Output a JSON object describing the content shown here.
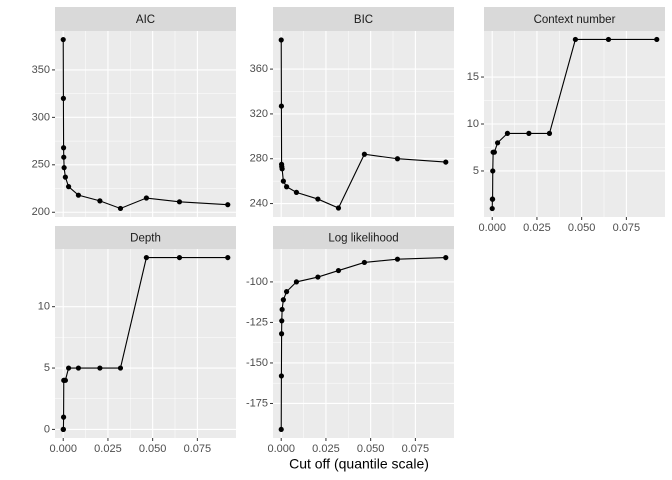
{
  "chart_data": [
    {
      "type": "line",
      "title": "AIC",
      "x": [
        0,
        0.0001,
        0.0002,
        0.0003,
        0.0005,
        0.0012,
        0.003,
        0.0085,
        0.0205,
        0.032,
        0.0465,
        0.065,
        0.092
      ],
      "values": [
        382,
        320,
        268,
        258,
        247,
        237,
        227,
        218,
        212,
        204,
        215,
        211,
        208
      ],
      "xlim": [
        -0.0046,
        0.0966
      ],
      "xticks": [
        {
          "value": 0,
          "label": "0.000"
        },
        0.025,
        {
          "value": 0.05,
          "label": "0.050"
        },
        0.075
      ],
      "ylim": [
        195,
        391
      ],
      "yticks": [
        200,
        250,
        300,
        350
      ],
      "color": "#000000",
      "grid": true
    },
    {
      "type": "line",
      "title": "BIC",
      "x": [
        0,
        0.0001,
        0.0002,
        0.0003,
        0.0005,
        0.0012,
        0.003,
        0.0085,
        0.0205,
        0.032,
        0.0465,
        0.065,
        0.092
      ],
      "values": [
        386,
        327,
        275,
        273,
        271,
        260,
        255,
        250,
        244,
        236,
        284,
        280,
        277
      ],
      "xlim": [
        -0.0046,
        0.0966
      ],
      "xticks": [
        {
          "value": 0,
          "label": "0.000"
        },
        0.025,
        {
          "value": 0.05,
          "label": "0.050"
        },
        0.075
      ],
      "ylim": [
        228,
        394
      ],
      "yticks": [
        240,
        280,
        320,
        360
      ],
      "color": "#000000",
      "grid": true
    },
    {
      "type": "line",
      "title": "Context number",
      "x": [
        0,
        0.0001,
        0.0002,
        0.0003,
        0.0005,
        0.0012,
        0.003,
        0.0085,
        0.0205,
        0.032,
        0.0465,
        0.065,
        0.092
      ],
      "values": [
        1,
        2,
        2,
        5,
        7,
        7,
        8,
        9,
        9,
        9,
        19,
        19,
        19
      ],
      "xlim": [
        -0.0046,
        0.0966
      ],
      "xticks": [
        {
          "value": 0,
          "label": "0.000"
        },
        0.025,
        {
          "value": 0.05,
          "label": "0.050"
        },
        0.075
      ],
      "ylim": [
        0.1,
        19.9
      ],
      "yticks": [
        5,
        10,
        15
      ],
      "color": "#000000",
      "grid": true
    },
    {
      "type": "line",
      "title": "Depth",
      "x": [
        0,
        0.0001,
        0.0002,
        0.0003,
        0.0005,
        0.0012,
        0.003,
        0.0085,
        0.0205,
        0.032,
        0.0465,
        0.065,
        0.092
      ],
      "values": [
        0,
        0,
        1,
        4,
        4,
        4,
        5,
        5,
        5,
        5,
        14,
        14,
        14
      ],
      "xlim": [
        -0.0046,
        0.0966
      ],
      "xticks": [
        {
          "value": 0,
          "label": "0.000"
        },
        0.025,
        {
          "value": 0.05,
          "label": "0.050"
        },
        0.075
      ],
      "ylim": [
        -0.7,
        14.7
      ],
      "yticks": [
        0,
        5,
        10
      ],
      "color": "#000000",
      "grid": true
    },
    {
      "type": "line",
      "title": "Log likelihood",
      "x": [
        0,
        0.0001,
        0.0002,
        0.0003,
        0.0005,
        0.0012,
        0.003,
        0.0085,
        0.0205,
        0.032,
        0.0465,
        0.065,
        0.092
      ],
      "values": [
        -191,
        -158,
        -132,
        -124,
        -117,
        -111,
        -106,
        -100,
        -97,
        -93,
        -88,
        -86,
        -85
      ],
      "xlim": [
        -0.0046,
        0.0966
      ],
      "xticks": [
        {
          "value": 0,
          "label": "0.000"
        },
        0.025,
        {
          "value": 0.05,
          "label": "0.050"
        },
        0.075
      ],
      "ylim": [
        -196.3,
        -79.7
      ],
      "yticks": [
        -175,
        -150,
        -125,
        -100
      ],
      "color": "#000000",
      "grid": true
    }
  ],
  "xlabel": "Cut off (quantile scale)"
}
